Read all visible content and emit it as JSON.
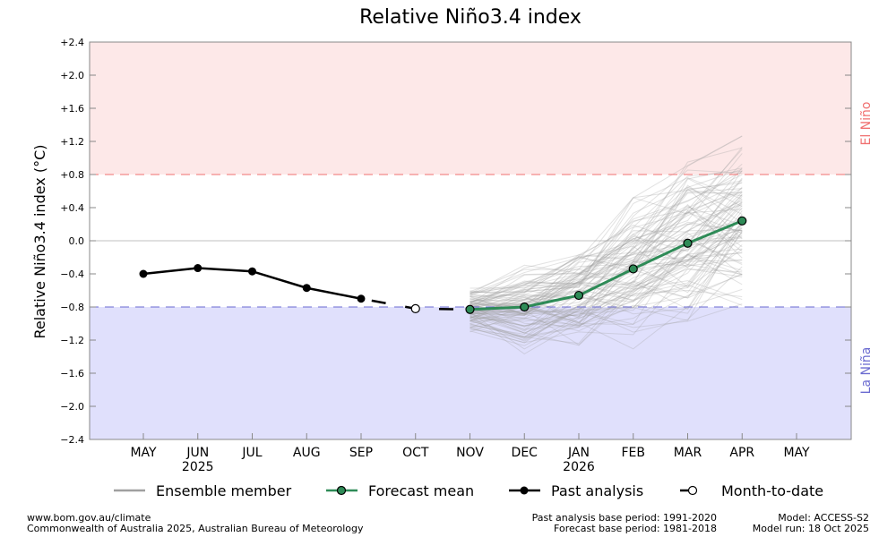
{
  "chart_data": {
    "type": "line",
    "title": "Relative Niño3.4 index",
    "ylabel": "Relative Niño3.4 index (°C)",
    "xlabel": "",
    "ylim": [
      -2.4,
      2.4
    ],
    "yticks": [
      "+2.4",
      "+2.0",
      "+1.6",
      "+1.2",
      "+0.8",
      "+0.4",
      "0.0",
      "−0.4",
      "−0.8",
      "−1.2",
      "−1.6",
      "−2.0",
      "−2.4"
    ],
    "ytick_values": [
      2.4,
      2.0,
      1.6,
      1.2,
      0.8,
      0.4,
      0,
      -0.4,
      -0.8,
      -1.2,
      -1.6,
      -2.0,
      -2.4
    ],
    "categories": [
      "MAY",
      "JUN",
      "JUL",
      "AUG",
      "SEP",
      "OCT",
      "NOV",
      "DEC",
      "JAN",
      "FEB",
      "MAR",
      "APR",
      "MAY"
    ],
    "year_labels": [
      {
        "index": 1,
        "text": "2025"
      },
      {
        "index": 8,
        "text": "2026"
      }
    ],
    "thresholds": {
      "el_nino": 0.8,
      "la_nina": -0.8
    },
    "region_labels": {
      "el_nino": "El Niño",
      "la_nina": "La Niña"
    },
    "colors": {
      "el_nino_fill": "#fde8e8",
      "la_nina_fill": "#e0e0fc",
      "el_nino_line": "#f07070",
      "la_nina_line": "#6a6ad0",
      "forecast": "#2e8b57",
      "ensemble": "#a0a0a0"
    },
    "series": [
      {
        "name": "Past analysis",
        "x": [
          0,
          1,
          2,
          3,
          4
        ],
        "values": [
          -0.4,
          -0.33,
          -0.37,
          -0.57,
          -0.7
        ]
      },
      {
        "name": "Month-to-date",
        "x": [
          5
        ],
        "values": [
          -0.82
        ]
      },
      {
        "name": "Forecast mean",
        "x": [
          6,
          7,
          8,
          9,
          10,
          11
        ],
        "values": [
          -0.83,
          -0.8,
          -0.66,
          -0.34,
          -0.03,
          0.24
        ]
      }
    ],
    "ensemble_envelope": {
      "x": [
        6,
        7,
        8,
        9,
        10,
        11
      ],
      "min": [
        -1.15,
        -1.38,
        -1.48,
        -1.47,
        -1.2,
        -1.02
      ],
      "max": [
        -0.55,
        -0.22,
        -0.05,
        0.52,
        1.08,
        1.38
      ]
    },
    "legend": [
      "Ensemble member",
      "Forecast mean",
      "Past analysis",
      "Month-to-date"
    ],
    "legend_position": "bottom"
  },
  "footer": {
    "left1": "www.bom.gov.au/climate",
    "left2": "Commonwealth of Australia 2025, Australian Bureau of Meteorology",
    "mid1": "Past analysis base period: 1991-2020",
    "mid2": "Forecast base period: 1981-2018",
    "right1": "Model: ACCESS-S2",
    "right2": "Model run: 18 Oct 2025"
  }
}
